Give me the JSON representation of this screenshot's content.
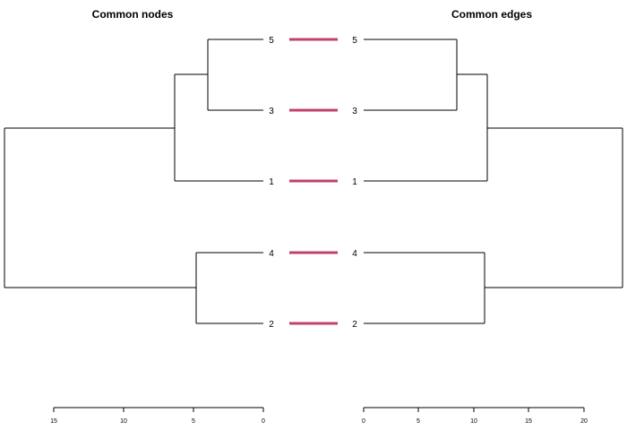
{
  "left": {
    "title": "Common nodes",
    "leaves": [
      "5",
      "3",
      "1",
      "4",
      "2"
    ],
    "axis_ticks": [
      "15",
      "10",
      "5",
      "0"
    ]
  },
  "right": {
    "title": "Common edges",
    "leaves": [
      "5",
      "3",
      "1",
      "4",
      "2"
    ],
    "axis_ticks": [
      "0",
      "5",
      "10",
      "15",
      "20"
    ]
  },
  "colors": {
    "connector": "#c0426c",
    "branch": "#000000"
  }
}
